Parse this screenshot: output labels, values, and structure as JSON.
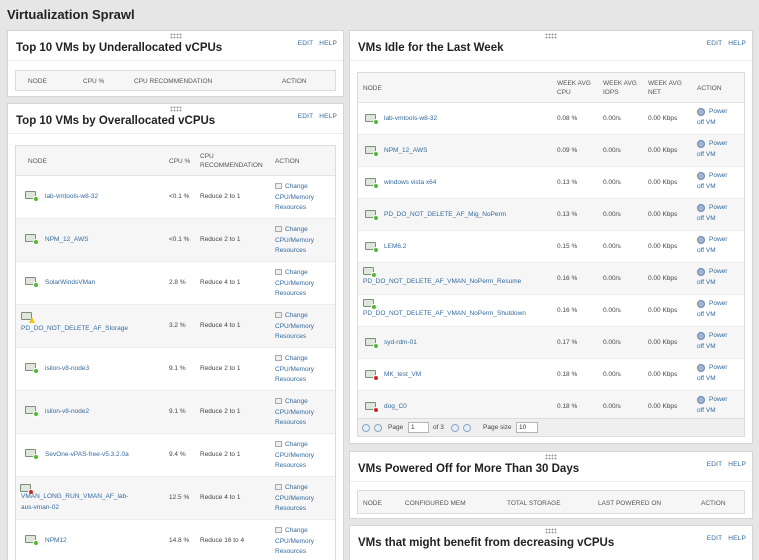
{
  "page": {
    "title": "Virtualization Sprawl"
  },
  "links": {
    "edit": "EDIT",
    "help": "HELP"
  },
  "underalloc": {
    "title": "Top 10 VMs by Underallocated vCPUs",
    "headers": {
      "node": "NODE",
      "cpu": "CPU %",
      "recommendation": "CPU RECOMMENDATION",
      "action": "ACTION"
    }
  },
  "overalloc": {
    "title": "Top 10 VMs by Overallocated vCPUs",
    "headers": {
      "node": "NODE",
      "cpu": "CPU %",
      "rec_line1": "CPU",
      "rec_line2": "RECOMMENDATION",
      "action": "ACTION"
    },
    "action_lines": [
      "Change",
      "CPU/Memory",
      "Resources"
    ],
    "rows": [
      {
        "node": "lab-vmtools-w8-32",
        "cpu": "<0.1 %",
        "rec": "Reduce 2 to 1",
        "status": "up"
      },
      {
        "node": "NPM_12_AWS",
        "cpu": "<0.1 %",
        "rec": "Reduce 2 to 1",
        "status": "up"
      },
      {
        "node": "SolarWindsVMan",
        "cpu": "2.8 %",
        "rec": "Reduce 4 to 1",
        "status": "up"
      },
      {
        "node": "PD_DO_NOT_DELETE_AF_Storage",
        "cpu": "3.2 %",
        "rec": "Reduce 4 to 1",
        "status": "warning"
      },
      {
        "node": "isilon-v8-node3",
        "cpu": "9.1 %",
        "rec": "Reduce 2 to 1",
        "status": "up"
      },
      {
        "node": "isilon-v8-node2",
        "cpu": "9.1 %",
        "rec": "Reduce 2 to 1",
        "status": "up"
      },
      {
        "node": "SevOne-vPAS-free-v5.3.2.0a",
        "cpu": "9.4 %",
        "rec": "Reduce 2 to 1",
        "status": "up"
      },
      {
        "node_line1": "VMAN_LONG_RUN_VMAN_AF_lab-",
        "node_line2": "aus-vman-02",
        "cpu": "12.5 %",
        "rec": "Reduce 4 to 1",
        "status": "critical"
      },
      {
        "node": "NPM12",
        "cpu": "14.8 %",
        "rec": "Reduce 16 to 4",
        "status": "up"
      }
    ]
  },
  "idle": {
    "title": "VMs Idle for the Last Week",
    "headers": {
      "node": "NODE",
      "cpu_l1": "WEEK AVG",
      "cpu_l2": "CPU",
      "iops_l1": "WEEK AVG",
      "iops_l2": "IOPS",
      "net_l1": "WEEK AVG",
      "net_l2": "NET",
      "action": "ACTION"
    },
    "action_lines": [
      "Power",
      "off VM"
    ],
    "rows": [
      {
        "node": "lab-vmtools-w8-32",
        "cpu": "0.08 %",
        "iops": "0.00/s",
        "net": "0.00 Kbps",
        "status": "up"
      },
      {
        "node": "NPM_12_AWS",
        "cpu": "0.09 %",
        "iops": "0.00/s",
        "net": "0.00 Kbps",
        "status": "up"
      },
      {
        "node": "windows vista x64",
        "cpu": "0.13 %",
        "iops": "0.00/s",
        "net": "0.00 Kbps",
        "status": "up"
      },
      {
        "node": "PD_DO_NOT_DELETE_AF_Mig_NoPerm",
        "cpu": "0.13 %",
        "iops": "0.00/s",
        "net": "0.00 Kbps",
        "status": "up"
      },
      {
        "node": "LEM6.2",
        "cpu": "0.15 %",
        "iops": "0.00/s",
        "net": "0.00 Kbps",
        "status": "up"
      },
      {
        "node": "PD_DO_NOT_DELETE_AF_VMAN_NoPerm_Resume",
        "cpu": "0.16 %",
        "iops": "0.00/s",
        "net": "0.00 Kbps",
        "status": "up"
      },
      {
        "node": "PD_DO_NOT_DELETE_AF_VMAN_NoPerm_Shutdown",
        "cpu": "0.16 %",
        "iops": "0.00/s",
        "net": "0.00 Kbps",
        "status": "up"
      },
      {
        "node": "syd-rdm-01",
        "cpu": "0.17 %",
        "iops": "0.00/s",
        "net": "0.00 Kbps",
        "status": "up"
      },
      {
        "node": "MK_test_VM",
        "cpu": "0.18 %",
        "iops": "0.00/s",
        "net": "0.00 Kbps",
        "status": "critical"
      },
      {
        "node": "dog_C0",
        "cpu": "0.18 %",
        "iops": "0.00/s",
        "net": "0.00 Kbps",
        "status": "critical"
      }
    ],
    "pager": {
      "page_label": "Page",
      "page_value": "1",
      "of_label": "of 3",
      "size_label": "Page size",
      "size_value": "10"
    }
  },
  "poweredoff": {
    "title": "VMs Powered Off for More Than 30 Days",
    "headers": {
      "node": "NODE",
      "mem": "CONFIGURED MEM",
      "storage": "TOTAL STORAGE",
      "last": "LAST POWERED ON",
      "action": "ACTION"
    }
  },
  "decreasing": {
    "title": "VMs that might benefit from decreasing vCPUs"
  },
  "colors": {
    "link": "#346a9c",
    "status_up": "#4fba2f",
    "status_critical": "#d42323",
    "status_warning": "#f1c50c"
  }
}
